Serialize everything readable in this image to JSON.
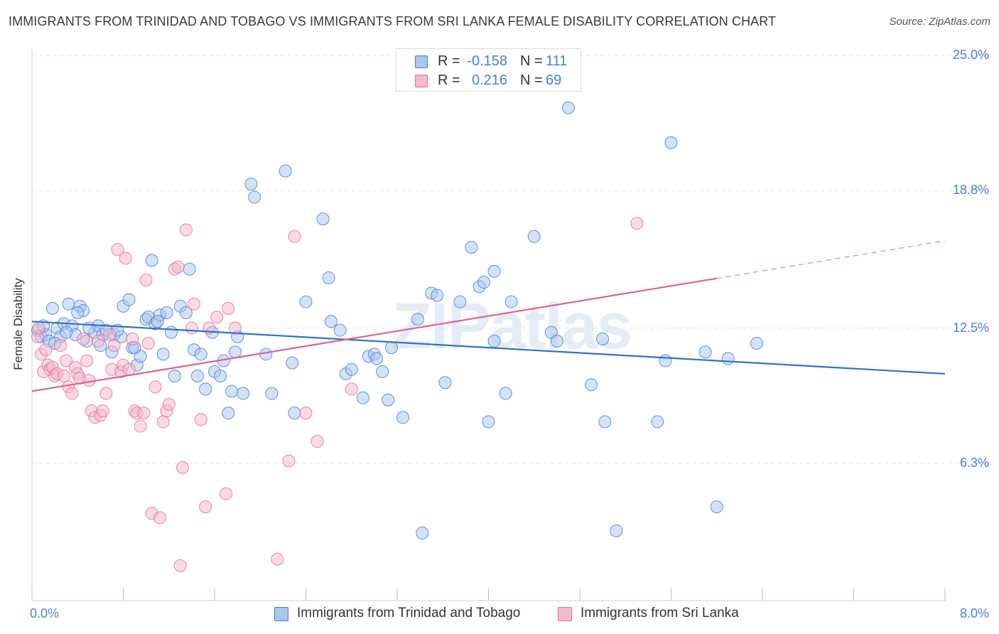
{
  "title": "IMMIGRANTS FROM TRINIDAD AND TOBAGO VS IMMIGRANTS FROM SRI LANKA FEMALE DISABILITY CORRELATION CHART",
  "source": "Source: ZipAtlas.com",
  "watermark": "ZIPatlas",
  "colors": {
    "blue": "#4a7fd1",
    "blue_fill": "#a9c6ee",
    "blue_line": "#2f72c8",
    "pink": "#e56f98",
    "pink_fill": "#f5b8cc",
    "pink_line": "#e0608e",
    "axis_text": "#4a7fd1",
    "grid": "#e3e3e3"
  },
  "legend_top": [
    {
      "r_label": "R =",
      "r_value": "-0.158",
      "n_label": "N =",
      "n_value": "111"
    },
    {
      "r_label": "R =",
      "r_value": "0.216",
      "n_label": "N =",
      "n_value": "69"
    }
  ],
  "chart_data": {
    "type": "scatter",
    "title": "IMMIGRANTS FROM TRINIDAD AND TOBAGO VS IMMIGRANTS FROM SRI LANKA FEMALE DISABILITY CORRELATION CHART",
    "xlabel": "",
    "ylabel": "Female Disability",
    "xlim": [
      0.0,
      8.0
    ],
    "ylim": [
      0.0,
      25.0
    ],
    "x_tick_labels": [
      "0.0%",
      "8.0%"
    ],
    "y_ticks": [
      6.3,
      12.5,
      18.8,
      25.0
    ],
    "y_tick_labels": [
      "6.3%",
      "12.5%",
      "18.8%",
      "25.0%"
    ],
    "grid": true,
    "legend_position": "bottom",
    "series": [
      {
        "name": "Immigrants from Trinidad and Tobago",
        "color": "blue",
        "R": -0.158,
        "N": 111,
        "trend": {
          "x": [
            0.0,
            8.0
          ],
          "y": [
            12.8,
            10.4
          ],
          "dashed_from": null
        },
        "points": [
          [
            0.05,
            12.4
          ],
          [
            0.08,
            12.1
          ],
          [
            0.12,
            12.2
          ],
          [
            0.15,
            11.9
          ],
          [
            0.18,
            13.4
          ],
          [
            0.22,
            12.5
          ],
          [
            0.25,
            12.1
          ],
          [
            0.28,
            12.7
          ],
          [
            0.32,
            13.6
          ],
          [
            0.35,
            12.6
          ],
          [
            0.38,
            12.2
          ],
          [
            0.42,
            13.5
          ],
          [
            0.45,
            13.3
          ],
          [
            0.48,
            11.9
          ],
          [
            0.55,
            12.3
          ],
          [
            0.58,
            12.6
          ],
          [
            0.62,
            12.2
          ],
          [
            0.65,
            12.4
          ],
          [
            0.7,
            11.4
          ],
          [
            0.72,
            12.2
          ],
          [
            0.78,
            12.1
          ],
          [
            0.8,
            13.5
          ],
          [
            0.85,
            13.8
          ],
          [
            0.88,
            11.6
          ],
          [
            0.92,
            10.8
          ],
          [
            0.95,
            11.2
          ],
          [
            1.0,
            12.9
          ],
          [
            1.02,
            13.0
          ],
          [
            1.05,
            15.6
          ],
          [
            1.08,
            12.7
          ],
          [
            1.12,
            13.1
          ],
          [
            1.15,
            11.3
          ],
          [
            1.18,
            13.2
          ],
          [
            1.22,
            12.3
          ],
          [
            1.25,
            10.3
          ],
          [
            1.3,
            13.5
          ],
          [
            1.35,
            13.2
          ],
          [
            1.38,
            15.2
          ],
          [
            1.42,
            11.5
          ],
          [
            1.45,
            10.3
          ],
          [
            1.48,
            11.3
          ],
          [
            1.52,
            9.7
          ],
          [
            1.58,
            12.3
          ],
          [
            1.6,
            10.5
          ],
          [
            1.65,
            10.3
          ],
          [
            1.68,
            11.0
          ],
          [
            1.72,
            8.6
          ],
          [
            1.75,
            9.6
          ],
          [
            1.78,
            11.4
          ],
          [
            1.8,
            12.1
          ],
          [
            1.85,
            9.5
          ],
          [
            1.92,
            19.1
          ],
          [
            1.95,
            18.5
          ],
          [
            2.05,
            11.3
          ],
          [
            2.1,
            9.5
          ],
          [
            2.22,
            19.7
          ],
          [
            2.28,
            10.9
          ],
          [
            2.3,
            8.6
          ],
          [
            2.4,
            13.7
          ],
          [
            2.55,
            17.5
          ],
          [
            2.6,
            14.8
          ],
          [
            2.62,
            12.8
          ],
          [
            2.7,
            12.4
          ],
          [
            2.75,
            10.4
          ],
          [
            2.8,
            10.6
          ],
          [
            2.9,
            9.3
          ],
          [
            2.95,
            11.2
          ],
          [
            3.0,
            11.3
          ],
          [
            3.02,
            11.1
          ],
          [
            3.07,
            10.5
          ],
          [
            3.12,
            9.2
          ],
          [
            3.15,
            11.6
          ],
          [
            3.25,
            8.4
          ],
          [
            3.38,
            12.9
          ],
          [
            3.42,
            3.1
          ],
          [
            3.5,
            14.1
          ],
          [
            3.55,
            14.0
          ],
          [
            3.62,
            10.0
          ],
          [
            3.75,
            13.7
          ],
          [
            3.85,
            16.2
          ],
          [
            3.92,
            14.4
          ],
          [
            3.96,
            14.6
          ],
          [
            4.0,
            8.2
          ],
          [
            4.05,
            15.1
          ],
          [
            4.05,
            11.9
          ],
          [
            4.15,
            9.5
          ],
          [
            4.2,
            13.7
          ],
          [
            4.4,
            16.7
          ],
          [
            4.55,
            12.3
          ],
          [
            4.6,
            11.9
          ],
          [
            4.7,
            22.6
          ],
          [
            4.9,
            9.9
          ],
          [
            5.02,
            8.2
          ],
          [
            5.12,
            3.2
          ],
          [
            5.0,
            12.0
          ],
          [
            5.48,
            8.2
          ],
          [
            5.55,
            11.0
          ],
          [
            5.6,
            21.0
          ],
          [
            5.9,
            11.4
          ],
          [
            6.0,
            4.3
          ],
          [
            6.1,
            11.1
          ],
          [
            6.35,
            11.8
          ],
          [
            0.1,
            12.6
          ],
          [
            0.2,
            11.8
          ],
          [
            0.3,
            12.3
          ],
          [
            0.4,
            13.2
          ],
          [
            0.5,
            12.5
          ],
          [
            0.6,
            11.7
          ],
          [
            0.75,
            12.4
          ],
          [
            0.9,
            11.6
          ],
          [
            1.1,
            12.8
          ]
        ]
      },
      {
        "name": "Immigrants from Sri Lanka",
        "color": "pink",
        "R": 0.216,
        "N": 69,
        "trend": {
          "x": [
            0.0,
            8.0
          ],
          "y": [
            9.6,
            16.5
          ],
          "dashed_from": 6.0
        },
        "points": [
          [
            0.05,
            12.1
          ],
          [
            0.06,
            12.5
          ],
          [
            0.08,
            11.3
          ],
          [
            0.1,
            10.5
          ],
          [
            0.12,
            11.5
          ],
          [
            0.14,
            10.8
          ],
          [
            0.16,
            10.6
          ],
          [
            0.18,
            10.7
          ],
          [
            0.2,
            10.3
          ],
          [
            0.22,
            10.4
          ],
          [
            0.25,
            11.7
          ],
          [
            0.28,
            10.3
          ],
          [
            0.3,
            11.0
          ],
          [
            0.32,
            9.8
          ],
          [
            0.35,
            9.5
          ],
          [
            0.38,
            10.7
          ],
          [
            0.4,
            10.4
          ],
          [
            0.42,
            10.2
          ],
          [
            0.45,
            12.0
          ],
          [
            0.48,
            11.0
          ],
          [
            0.5,
            10.1
          ],
          [
            0.52,
            8.7
          ],
          [
            0.55,
            8.4
          ],
          [
            0.58,
            11.9
          ],
          [
            0.6,
            8.5
          ],
          [
            0.62,
            8.7
          ],
          [
            0.65,
            9.5
          ],
          [
            0.68,
            12.2
          ],
          [
            0.7,
            10.6
          ],
          [
            0.72,
            11.7
          ],
          [
            0.75,
            16.1
          ],
          [
            0.78,
            10.5
          ],
          [
            0.8,
            10.8
          ],
          [
            0.82,
            15.7
          ],
          [
            0.85,
            10.6
          ],
          [
            0.88,
            12.0
          ],
          [
            0.9,
            8.7
          ],
          [
            0.92,
            8.6
          ],
          [
            0.95,
            8.0
          ],
          [
            0.98,
            8.6
          ],
          [
            1.0,
            14.7
          ],
          [
            1.02,
            11.8
          ],
          [
            1.05,
            4.0
          ],
          [
            1.08,
            9.8
          ],
          [
            1.12,
            3.8
          ],
          [
            1.15,
            8.2
          ],
          [
            1.18,
            8.7
          ],
          [
            1.2,
            9.0
          ],
          [
            1.25,
            15.2
          ],
          [
            1.28,
            15.3
          ],
          [
            1.3,
            1.6
          ],
          [
            1.32,
            6.1
          ],
          [
            1.35,
            17.0
          ],
          [
            1.4,
            12.5
          ],
          [
            1.42,
            13.6
          ],
          [
            1.48,
            8.3
          ],
          [
            1.52,
            4.3
          ],
          [
            1.55,
            12.5
          ],
          [
            1.62,
            13.0
          ],
          [
            1.7,
            4.9
          ],
          [
            1.72,
            13.4
          ],
          [
            1.78,
            12.5
          ],
          [
            2.15,
            1.9
          ],
          [
            2.25,
            6.4
          ],
          [
            2.3,
            16.7
          ],
          [
            2.4,
            8.6
          ],
          [
            2.5,
            7.3
          ],
          [
            2.8,
            9.7
          ],
          [
            5.3,
            17.3
          ]
        ]
      }
    ]
  },
  "legend_bottom": [
    {
      "label": "Immigrants from Trinidad and Tobago"
    },
    {
      "label": "Immigrants from Sri Lanka"
    }
  ]
}
